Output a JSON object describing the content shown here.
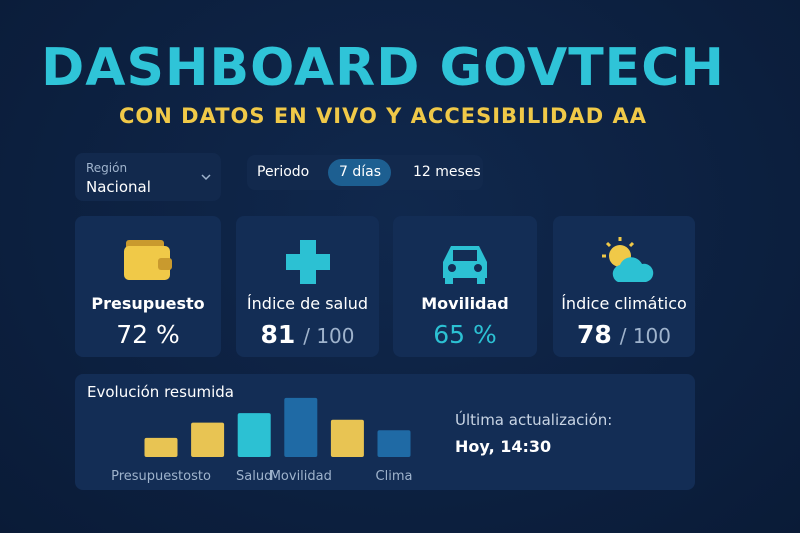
{
  "header": {
    "title": "DASHBOARD GOVTECH",
    "subtitle": "CON DATOS EN VIVO Y ACCESIBILIDAD AA"
  },
  "filters": {
    "region": {
      "label": "Región",
      "value": "Nacional"
    },
    "period": {
      "label": "Periodo",
      "options": [
        "7 días",
        "12 meses"
      ],
      "selected": 0
    }
  },
  "kpis": [
    {
      "label": "Presupuesto",
      "value": "72 %"
    },
    {
      "label": "Índice de salud",
      "value": "81",
      "suffix": "/ 100"
    },
    {
      "label": "Movilidad",
      "value": "65 %"
    },
    {
      "label": "Índice climático",
      "value": "78",
      "suffix": "/ 100"
    }
  ],
  "chart_data": {
    "type": "bar",
    "title": "Evolución resumida",
    "categories": [
      "Presupuestosto",
      null,
      "Salud",
      "Movilidad",
      null,
      "Clima"
    ],
    "values": [
      20,
      36,
      46,
      62,
      39,
      28
    ],
    "colors": [
      "#e8c453",
      "#e8c453",
      "#2cc1d3",
      "#1f6aa5",
      "#e8c453",
      "#1f6aa5"
    ],
    "ylim": [
      0,
      65
    ]
  },
  "update": {
    "label": "Última actualización:",
    "value": "Hoy, 14:30"
  }
}
